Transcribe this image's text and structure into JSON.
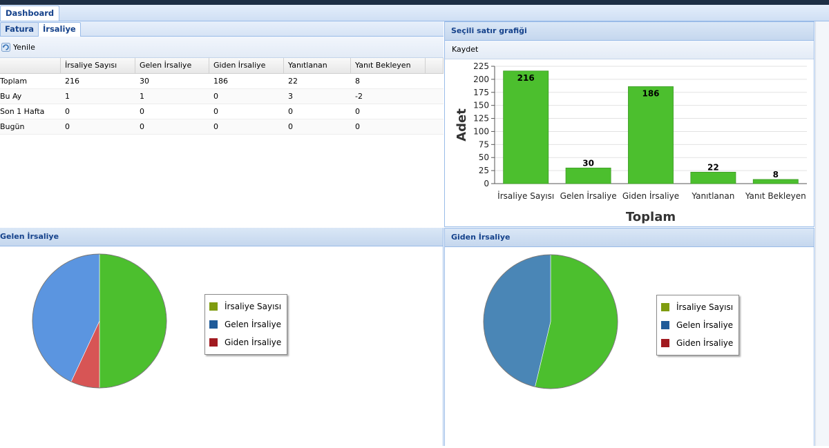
{
  "tabs": {
    "dashboard": "Dashboard"
  },
  "subtabs": {
    "fatura": "Fatura",
    "irsaliye": "İrsaliye"
  },
  "toolbar": {
    "refresh_label": "Yenile"
  },
  "grid": {
    "headers": [
      "",
      "İrsaliye Sayısı",
      "Gelen İrsaliye",
      "Giden İrsaliye",
      "Yanıtlanan",
      "Yanıt Bekleyen"
    ],
    "rows": [
      [
        "Toplam",
        "216",
        "30",
        "186",
        "22",
        "8"
      ],
      [
        "Bu Ay",
        "1",
        "1",
        "0",
        "3",
        "-2"
      ],
      [
        "Son 1 Hafta",
        "0",
        "0",
        "0",
        "0",
        "0"
      ],
      [
        "Bugün",
        "0",
        "0",
        "0",
        "0",
        "0"
      ]
    ]
  },
  "chart_panel": {
    "title": "Seçili satır grafiği",
    "save_label": "Kaydet"
  },
  "bottom_left": {
    "title": "Gelen İrsaliye"
  },
  "bottom_right": {
    "title": "Giden İrsaliye"
  },
  "legend": {
    "items": [
      "İrsaliye Sayısı",
      "Gelen İrsaliye",
      "Giden İrsaliye"
    ],
    "colors": [
      "#7f9c0f",
      "#1f5b99",
      "#a11a20"
    ]
  },
  "chart_data": [
    {
      "type": "bar",
      "categories": [
        "İrsaliye Sayısı",
        "Gelen İrsaliye",
        "Giden İrsaliye",
        "Yanıtlanan",
        "Yanıt Bekleyen"
      ],
      "values": [
        216,
        30,
        186,
        22,
        8
      ],
      "xlabel": "Toplam",
      "ylabel": "Adet",
      "ylim": [
        0,
        225
      ],
      "yticks": [
        0,
        25,
        50,
        75,
        100,
        125,
        150,
        175,
        200,
        225
      ],
      "grid": true,
      "color": "#4cbf2e"
    },
    {
      "type": "pie",
      "labels": [
        "İrsaliye Sayısı",
        "Gelen İrsaliye",
        "Giden İrsaliye"
      ],
      "values": [
        216,
        30,
        186
      ],
      "colors": [
        "#4cbf2e",
        "#d75555",
        "#5b95e0"
      ]
    },
    {
      "type": "pie",
      "labels": [
        "İrsaliye Sayısı",
        "Gelen İrsaliye",
        "Giden İrsaliye"
      ],
      "values": [
        216,
        0,
        186
      ],
      "colors": [
        "#4cbf2e",
        "#d75555",
        "#4a86b6"
      ]
    }
  ]
}
